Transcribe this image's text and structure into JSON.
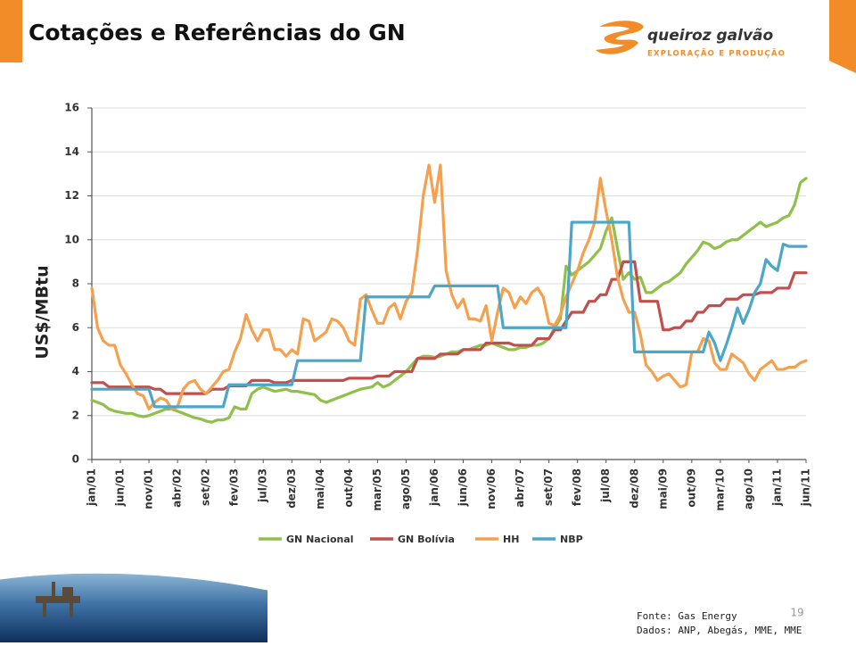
{
  "header": {
    "title": "Cotações e Referências do GN",
    "logo_name": "queiroz galvão",
    "logo_subtitle": "EXPLORAÇÃO E PRODUÇÃO"
  },
  "chart_data": {
    "type": "line",
    "y_label": "US$/MBtu",
    "categories": [
      "jan/01",
      null,
      null,
      null,
      null,
      "jun/01",
      null,
      null,
      null,
      null,
      "nov/01",
      null,
      null,
      null,
      null,
      "abr/02",
      null,
      null,
      null,
      null,
      "set/02",
      null,
      null,
      null,
      null,
      "fev/03",
      null,
      null,
      null,
      null,
      "jul/03",
      null,
      null,
      null,
      null,
      "dez/03",
      null,
      null,
      null,
      null,
      "mai/04",
      null,
      null,
      null,
      null,
      "out/04",
      null,
      null,
      null,
      null,
      "mar/05",
      null,
      null,
      null,
      null,
      "ago/05",
      null,
      null,
      null,
      null,
      "jan/06",
      null,
      null,
      null,
      null,
      "jun/06",
      null,
      null,
      null,
      null,
      "nov/06",
      null,
      null,
      null,
      null,
      "abr/07",
      null,
      null,
      null,
      null,
      "set/07",
      null,
      null,
      null,
      null,
      "fev/08",
      null,
      null,
      null,
      null,
      "jul/08",
      null,
      null,
      null,
      null,
      "dez/08",
      null,
      null,
      null,
      null,
      "mai/09",
      null,
      null,
      null,
      null,
      "out/09",
      null,
      null,
      null,
      null,
      "mar/10",
      null,
      null,
      null,
      null,
      "ago/10",
      null,
      null,
      null,
      null,
      "jan/11",
      null,
      null,
      null,
      null,
      "jun/11"
    ],
    "series": [
      {
        "name": "GN Nacional",
        "color": "#8fc04a",
        "values": [
          2.7,
          2.6,
          2.5,
          2.3,
          2.2,
          2.15,
          2.1,
          2.1,
          2.0,
          1.95,
          2.0,
          2.1,
          2.2,
          2.3,
          2.3,
          2.2,
          2.1,
          2.0,
          1.9,
          1.85,
          1.75,
          1.7,
          1.8,
          1.8,
          1.9,
          2.4,
          2.3,
          2.3,
          3.0,
          3.2,
          3.3,
          3.2,
          3.1,
          3.15,
          3.2,
          3.1,
          3.1,
          3.05,
          3.0,
          2.95,
          2.7,
          2.6,
          2.7,
          2.8,
          2.9,
          3.0,
          3.1,
          3.2,
          3.25,
          3.3,
          3.5,
          3.3,
          3.4,
          3.6,
          3.8,
          4.0,
          4.3,
          4.6,
          4.7,
          4.7,
          4.65,
          4.7,
          4.8,
          4.9,
          4.9,
          5.0,
          5.0,
          5.1,
          5.2,
          5.2,
          5.3,
          5.2,
          5.1,
          5.0,
          5.0,
          5.1,
          5.1,
          5.2,
          5.2,
          5.3,
          5.5,
          6.0,
          6.4,
          8.8,
          8.4,
          8.6,
          8.8,
          9.0,
          9.3,
          9.6,
          10.4,
          11.0,
          9.6,
          8.2,
          8.5,
          8.2,
          8.3,
          7.6,
          7.6,
          7.8,
          8.0,
          8.1,
          8.3,
          8.5,
          8.9,
          9.2,
          9.5,
          9.9,
          9.8,
          9.6,
          9.7,
          9.9,
          10.0,
          10.0,
          10.2,
          10.4,
          10.6,
          10.8,
          10.6,
          10.7,
          10.8,
          11.0,
          11.1,
          11.6,
          12.6,
          12.8
        ]
      },
      {
        "name": "GN Bolívia",
        "color": "#c0504d",
        "values": [
          3.5,
          3.5,
          3.5,
          3.3,
          3.3,
          3.3,
          3.3,
          3.3,
          3.3,
          3.3,
          3.3,
          3.2,
          3.2,
          3.0,
          3.0,
          3.0,
          3.0,
          3.0,
          3.0,
          3.0,
          3.0,
          3.2,
          3.2,
          3.2,
          3.35,
          3.35,
          3.35,
          3.35,
          3.6,
          3.6,
          3.6,
          3.6,
          3.5,
          3.5,
          3.5,
          3.6,
          3.6,
          3.6,
          3.6,
          3.6,
          3.6,
          3.6,
          3.6,
          3.6,
          3.6,
          3.7,
          3.7,
          3.7,
          3.7,
          3.7,
          3.8,
          3.8,
          3.8,
          4.0,
          4.0,
          4.0,
          4.0,
          4.6,
          4.6,
          4.6,
          4.6,
          4.8,
          4.8,
          4.8,
          4.8,
          5.0,
          5.0,
          5.0,
          5.0,
          5.3,
          5.3,
          5.3,
          5.3,
          5.3,
          5.2,
          5.2,
          5.2,
          5.2,
          5.5,
          5.5,
          5.5,
          5.9,
          5.9,
          6.3,
          6.7,
          6.7,
          6.7,
          7.2,
          7.2,
          7.5,
          7.5,
          8.2,
          8.2,
          9.0,
          9.0,
          9.0,
          7.2,
          7.2,
          7.2,
          7.2,
          5.9,
          5.9,
          6.0,
          6.0,
          6.3,
          6.3,
          6.7,
          6.7,
          7.0,
          7.0,
          7.0,
          7.3,
          7.3,
          7.3,
          7.5,
          7.5,
          7.5,
          7.6,
          7.6,
          7.6,
          7.8,
          7.8,
          7.8,
          8.5,
          8.5,
          8.5
        ]
      },
      {
        "name": "HH",
        "color": "#f5a04e",
        "values": [
          7.8,
          6.0,
          5.4,
          5.2,
          5.2,
          4.3,
          3.9,
          3.4,
          3.0,
          2.9,
          2.3,
          2.6,
          2.8,
          2.7,
          2.3,
          2.4,
          3.2,
          3.5,
          3.6,
          3.2,
          3.0,
          3.3,
          3.6,
          4.0,
          4.1,
          4.9,
          5.5,
          6.6,
          5.9,
          5.4,
          5.9,
          5.9,
          5.0,
          5.0,
          4.7,
          5.0,
          4.8,
          6.4,
          6.3,
          5.4,
          5.6,
          5.8,
          6.4,
          6.3,
          6.0,
          5.4,
          5.2,
          7.3,
          7.5,
          6.8,
          6.2,
          6.2,
          6.9,
          7.1,
          6.4,
          7.2,
          7.6,
          9.5,
          12.0,
          13.4,
          11.7,
          13.4,
          8.6,
          7.5,
          6.9,
          7.3,
          6.4,
          6.4,
          6.3,
          7.0,
          5.4,
          6.7,
          7.8,
          7.6,
          6.9,
          7.4,
          7.1,
          7.6,
          7.8,
          7.4,
          6.2,
          6.1,
          6.6,
          7.4,
          8.0,
          8.6,
          9.4,
          10.0,
          10.8,
          12.8,
          11.3,
          10.0,
          8.3,
          7.3,
          6.7,
          6.7,
          5.7,
          4.3,
          4.0,
          3.6,
          3.8,
          3.9,
          3.6,
          3.3,
          3.4,
          4.9,
          4.9,
          5.5,
          5.4,
          4.4,
          4.1,
          4.1,
          4.8,
          4.6,
          4.4,
          3.9,
          3.6,
          4.1,
          4.3,
          4.5,
          4.1,
          4.1,
          4.2,
          4.2,
          4.4,
          4.5
        ]
      },
      {
        "name": "NBP",
        "color": "#4ba6c8",
        "values": [
          3.2,
          3.2,
          3.2,
          3.2,
          3.2,
          3.2,
          3.2,
          3.2,
          3.2,
          3.2,
          3.2,
          2.4,
          2.4,
          2.4,
          2.4,
          2.4,
          2.4,
          2.4,
          2.4,
          2.4,
          2.4,
          2.4,
          2.4,
          2.4,
          3.4,
          3.4,
          3.4,
          3.4,
          3.4,
          3.4,
          3.4,
          3.4,
          3.4,
          3.4,
          3.4,
          3.4,
          4.5,
          4.5,
          4.5,
          4.5,
          4.5,
          4.5,
          4.5,
          4.5,
          4.5,
          4.5,
          4.5,
          4.5,
          7.4,
          7.4,
          7.4,
          7.4,
          7.4,
          7.4,
          7.4,
          7.4,
          7.4,
          7.4,
          7.4,
          7.4,
          7.9,
          7.9,
          7.9,
          7.9,
          7.9,
          7.9,
          7.9,
          7.9,
          7.9,
          7.9,
          7.9,
          7.9,
          6.0,
          6.0,
          6.0,
          6.0,
          6.0,
          6.0,
          6.0,
          6.0,
          6.0,
          6.0,
          6.0,
          6.0,
          10.8,
          10.8,
          10.8,
          10.8,
          10.8,
          10.8,
          10.8,
          10.8,
          10.8,
          10.8,
          10.8,
          4.9,
          4.9,
          4.9,
          4.9,
          4.9,
          4.9,
          4.9,
          4.9,
          4.9,
          4.9,
          4.9,
          4.9,
          4.9,
          5.8,
          5.3,
          4.5,
          5.2,
          6.0,
          6.9,
          6.2,
          6.8,
          7.6,
          8.0,
          9.1,
          8.8,
          8.6,
          9.8,
          9.7,
          9.7,
          9.7,
          9.7
        ]
      }
    ],
    "ylim": [
      0,
      16
    ],
    "yticks": [
      0,
      2,
      4,
      6,
      8,
      10,
      12,
      14,
      16
    ],
    "grid": true
  },
  "footer": {
    "source": "Fonte: Gas Energy",
    "data_sources": "Dados: ANP, Abegás, MME, MME",
    "page_number": 19
  }
}
